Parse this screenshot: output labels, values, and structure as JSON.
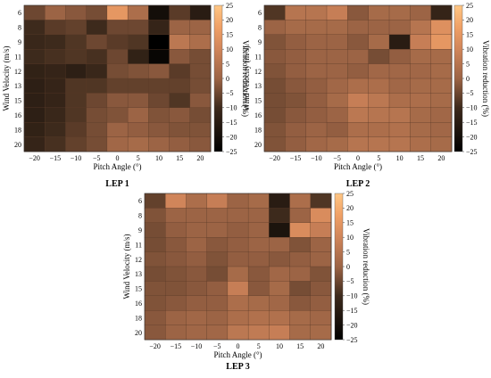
{
  "chart_data": [
    {
      "type": "heatmap",
      "caption": "LEP 1",
      "xlabel": "Pitch Angle (°)",
      "ylabel": "Wind Velocity (m/s)",
      "colorbar_label": "Vibration reduction (%)",
      "x": [
        -20,
        -15,
        -10,
        -5,
        0,
        5,
        10,
        15,
        20
      ],
      "y": [
        6,
        8,
        9,
        11,
        12,
        13,
        15,
        16,
        18,
        20
      ],
      "clim": [
        -25,
        25
      ],
      "colorbar_ticks": [
        25,
        20,
        15,
        10,
        5,
        0,
        -5,
        -10,
        -15,
        -20,
        -25
      ],
      "values": [
        [
          -5,
          0,
          -2,
          -4,
          15,
          3,
          -20,
          -7,
          -15
        ],
        [
          -10,
          -7,
          -6,
          -10,
          -5,
          -5,
          -12,
          0,
          0
        ],
        [
          -11,
          -10,
          -8,
          -5,
          -7,
          -8,
          -25,
          6,
          3
        ],
        [
          -10,
          -9,
          -8,
          -9,
          -5,
          -13,
          -23,
          -2,
          -4
        ],
        [
          -13,
          -12,
          -14,
          -11,
          -4,
          -3,
          -2,
          -7,
          -4
        ],
        [
          -14,
          -12,
          -8,
          -8,
          -6,
          -6,
          -6,
          -6,
          -4
        ],
        [
          -14,
          -12,
          -8,
          -5,
          -2,
          -2,
          -5,
          -8,
          -2
        ],
        [
          -14,
          -11,
          -8,
          -4,
          -3,
          0,
          -3,
          -2,
          -4
        ],
        [
          -13,
          -10,
          -7,
          -4,
          0,
          -1,
          -2,
          -3,
          -3
        ],
        [
          -12,
          -9,
          -6,
          -4,
          1,
          2,
          0,
          -1,
          -2
        ]
      ]
    },
    {
      "type": "heatmap",
      "caption": "LEP 2",
      "xlabel": "Pitch Angle (°)",
      "ylabel": "Wind Velocity (m/s)",
      "colorbar_label": "Vibration reduction (%)",
      "x": [
        -20,
        -15,
        -10,
        -5,
        0,
        5,
        10,
        15,
        20
      ],
      "y": [
        6,
        8,
        9,
        11,
        12,
        13,
        15,
        16,
        18,
        20
      ],
      "clim": [
        -25,
        25
      ],
      "colorbar_ticks": [
        25,
        20,
        15,
        10,
        5,
        0,
        -5,
        -10,
        -15,
        -20,
        -25
      ],
      "values": [
        [
          -8,
          5,
          5,
          8,
          -2,
          2,
          2,
          0,
          -12
        ],
        [
          0,
          2,
          2,
          2,
          0,
          0,
          0,
          5,
          13
        ],
        [
          -3,
          -1,
          0,
          0,
          -2,
          2,
          -15,
          8,
          15
        ],
        [
          -2,
          -1,
          0,
          0,
          0,
          -4,
          -1,
          2,
          2
        ],
        [
          -3,
          -1,
          0,
          0,
          -1,
          1,
          1,
          1,
          2
        ],
        [
          -4,
          -2,
          -1,
          1,
          3,
          3,
          1,
          2,
          2
        ],
        [
          -4,
          -3,
          -1,
          2,
          8,
          6,
          3,
          3,
          2
        ],
        [
          -4,
          -2,
          -1,
          0,
          6,
          5,
          5,
          2,
          1
        ],
        [
          -3,
          -1,
          0,
          -1,
          3,
          3,
          4,
          2,
          1
        ],
        [
          -3,
          -1,
          1,
          2,
          5,
          5,
          5,
          3,
          2
        ]
      ]
    },
    {
      "type": "heatmap",
      "caption": "LEP 3",
      "xlabel": "Pitch Angle (°)",
      "ylabel": "Wind Velocity (m/s)",
      "colorbar_label": "Vibration reduction (%)",
      "x": [
        -20,
        -15,
        -10,
        -5,
        0,
        5,
        10,
        15,
        20
      ],
      "y": [
        6,
        8,
        9,
        11,
        12,
        13,
        15,
        16,
        18,
        20
      ],
      "clim": [
        -25,
        25
      ],
      "colorbar_ticks": [
        25,
        20,
        15,
        10,
        5,
        0,
        -5,
        -10,
        -15,
        -20,
        -25
      ],
      "values": [
        [
          -6,
          10,
          3,
          8,
          0,
          2,
          -15,
          3,
          -8
        ],
        [
          -3,
          0,
          0,
          0,
          0,
          0,
          -10,
          0,
          12
        ],
        [
          -4,
          -1,
          0,
          0,
          -1,
          0,
          -18,
          12,
          8
        ],
        [
          -4,
          -2,
          0,
          -2,
          -1,
          0,
          0,
          -3,
          0
        ],
        [
          -3,
          -2,
          -1,
          -3,
          -1,
          -1,
          -2,
          -1,
          0
        ],
        [
          -4,
          -3,
          -2,
          -4,
          2,
          -2,
          1,
          0,
          -3
        ],
        [
          -3,
          -3,
          -2,
          -1,
          8,
          -2,
          2,
          -4,
          -2
        ],
        [
          -3,
          -2,
          -1,
          -1,
          3,
          2,
          1,
          -2,
          -1
        ],
        [
          -2,
          0,
          1,
          0,
          3,
          4,
          4,
          2,
          1
        ],
        [
          -2,
          0,
          1,
          1,
          6,
          7,
          8,
          2,
          2
        ]
      ]
    }
  ]
}
